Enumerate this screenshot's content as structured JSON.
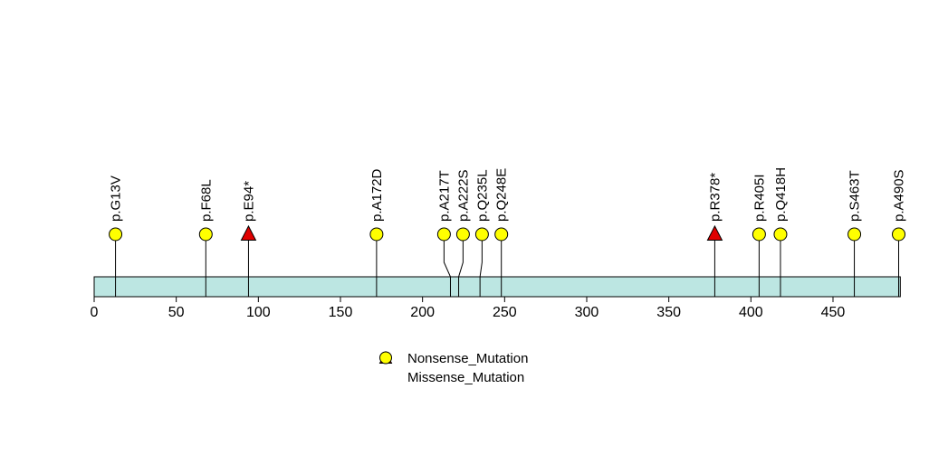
{
  "chart_data": {
    "type": "lollipop",
    "title": "",
    "xlabel": "",
    "ylabel": "",
    "xlim": [
      0,
      491
    ],
    "protein_length": 491,
    "axis": {
      "ticks": [
        0,
        50,
        100,
        150,
        200,
        250,
        300,
        350,
        400,
        450
      ],
      "grid": false
    },
    "mutations": [
      {
        "label": "p.G13V",
        "position": 13,
        "type": "Missense_Mutation"
      },
      {
        "label": "p.F68L",
        "position": 68,
        "type": "Missense_Mutation"
      },
      {
        "label": "p.E94*",
        "position": 94,
        "type": "Nonsense_Mutation"
      },
      {
        "label": "p.A172D",
        "position": 172,
        "type": "Missense_Mutation"
      },
      {
        "label": "p.A217T",
        "position": 217,
        "type": "Missense_Mutation"
      },
      {
        "label": "p.A222S",
        "position": 222,
        "type": "Missense_Mutation"
      },
      {
        "label": "p.Q235L",
        "position": 235,
        "type": "Missense_Mutation"
      },
      {
        "label": "p.Q248E",
        "position": 248,
        "type": "Missense_Mutation"
      },
      {
        "label": "p.R378*",
        "position": 378,
        "type": "Nonsense_Mutation"
      },
      {
        "label": "p.R405I",
        "position": 405,
        "type": "Missense_Mutation"
      },
      {
        "label": "p.Q418H",
        "position": 418,
        "type": "Missense_Mutation"
      },
      {
        "label": "p.S463T",
        "position": 463,
        "type": "Missense_Mutation"
      },
      {
        "label": "p.A490S",
        "position": 490,
        "type": "Missense_Mutation"
      }
    ],
    "legend": [
      {
        "label": "Nonsense_Mutation",
        "marker": "triangle",
        "color": "#e00000"
      },
      {
        "label": "Missense_Mutation",
        "marker": "circle",
        "color": "#ffff00"
      }
    ],
    "legend_position": "bottom-center",
    "colors": {
      "domain_bar": "#bce6e2",
      "nonsense": "#e00000",
      "missense": "#ffff00",
      "stroke": "#000000"
    }
  }
}
